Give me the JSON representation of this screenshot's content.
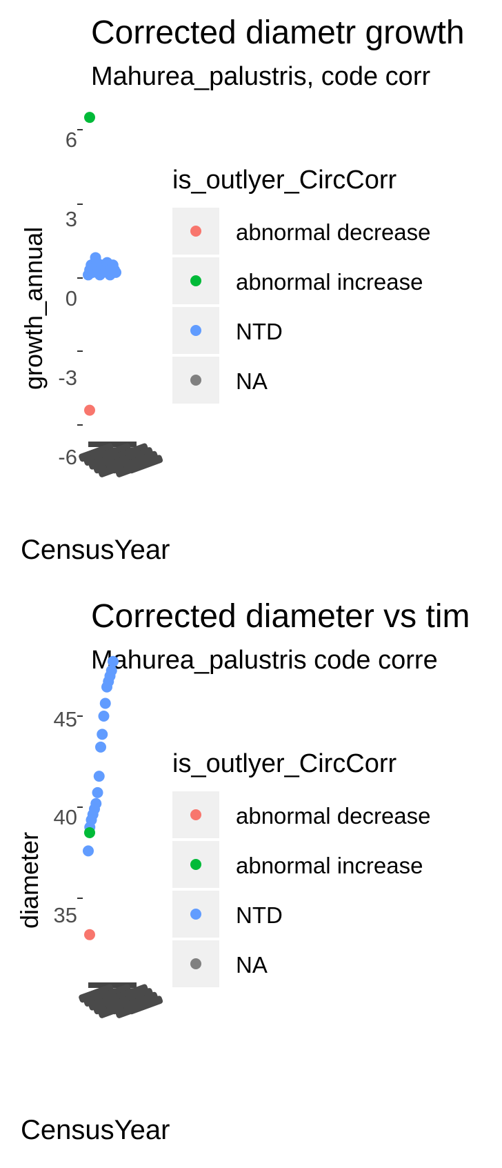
{
  "chart_data": [
    {
      "type": "scatter",
      "title": "Corrected diametr growth",
      "subtitle": "Mahurea_palustris, code corr",
      "xlabel": "CensusYear",
      "ylabel": "growth_annual",
      "ylim": [
        -6,
        6.5
      ],
      "yticks": [
        "6",
        "3",
        "0",
        "-3",
        "-6"
      ],
      "legend_title": "is_outlyer_CircCorr",
      "legend": [
        {
          "label": "abnormal decrease",
          "color": "#F8766D"
        },
        {
          "label": "abnormal increase",
          "color": "#00BA38"
        },
        {
          "label": "NTD",
          "color": "#619CFF"
        },
        {
          "label": "NA",
          "color": "#808080"
        }
      ],
      "series": [
        {
          "name": "abnormal increase",
          "color": "#00BA38",
          "y": [
            6.5
          ]
        },
        {
          "name": "NTD",
          "color": "#619CFF",
          "y": [
            0.1,
            0.3,
            0.5,
            0.2,
            0.4,
            0.8,
            0.6,
            0.3,
            0.1,
            0.5,
            0.2,
            0.4,
            0.3,
            0.6,
            0.2,
            0.1,
            0.4,
            0.5,
            0.3,
            0.2
          ]
        },
        {
          "name": "abnormal decrease",
          "color": "#F8766D",
          "y": [
            -5.4
          ]
        }
      ]
    },
    {
      "type": "scatter",
      "title": "Corrected diameter vs tim",
      "subtitle": "Mahurea_palustris code corre",
      "xlabel": "CensusYear",
      "ylabel": "diameter",
      "ylim": [
        33,
        48
      ],
      "yticks": [
        "45",
        "40",
        "35"
      ],
      "legend_title": "is_outlyer_CircCorr",
      "legend": [
        {
          "label": "abnormal decrease",
          "color": "#F8766D"
        },
        {
          "label": "abnormal increase",
          "color": "#00BA38"
        },
        {
          "label": "NTD",
          "color": "#619CFF"
        },
        {
          "label": "NA",
          "color": "#808080"
        }
      ],
      "series": [
        {
          "name": "NTD",
          "color": "#619CFF",
          "y": [
            37.6,
            38.9,
            39.3,
            39.6,
            39.9,
            40.2,
            40.8,
            41.7,
            43.3,
            44.0,
            45.0,
            45.7,
            46.6,
            46.9,
            47.2,
            47.5,
            48.0
          ]
        },
        {
          "name": "abnormal increase",
          "color": "#00BA38",
          "y": [
            38.6
          ]
        },
        {
          "name": "abnormal decrease",
          "color": "#F8766D",
          "y": [
            33.0
          ]
        }
      ]
    }
  ]
}
